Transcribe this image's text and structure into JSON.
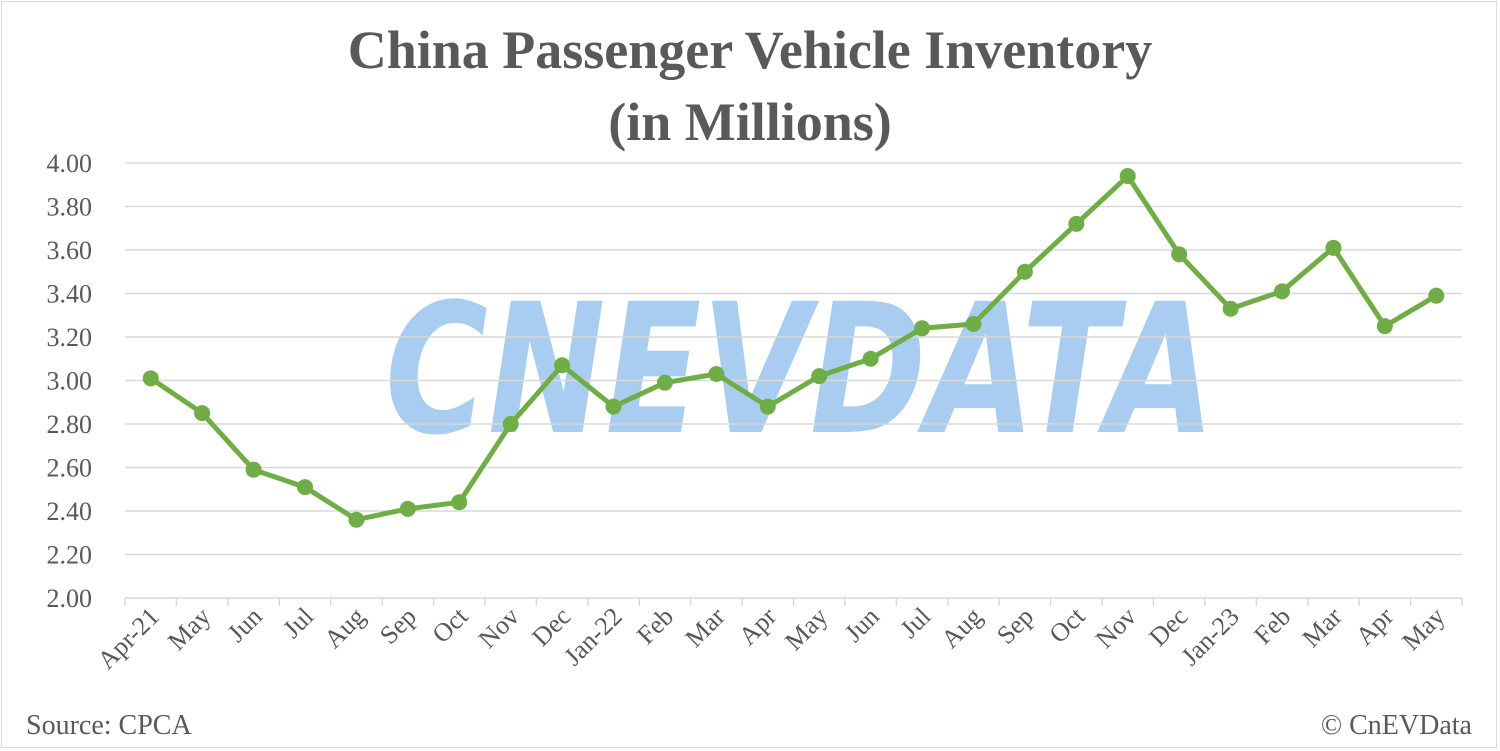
{
  "chart_data": {
    "type": "line",
    "title_line1": "China Passenger Vehicle Inventory",
    "title_line2": "(in Millions)",
    "categories": [
      "Apr-21",
      "May",
      "Jun",
      "Jul",
      "Aug",
      "Sep",
      "Oct",
      "Nov",
      "Dec",
      "Jan-22",
      "Feb",
      "Mar",
      "Apr",
      "May",
      "Jun",
      "Jul",
      "Aug",
      "Sep",
      "Oct",
      "Nov",
      "Dec",
      "Jan-23",
      "Feb",
      "Mar",
      "Apr",
      "May"
    ],
    "values": [
      3.01,
      2.85,
      2.59,
      2.51,
      2.36,
      2.41,
      2.44,
      2.8,
      3.07,
      2.88,
      2.99,
      3.03,
      2.88,
      3.02,
      3.1,
      3.24,
      3.26,
      3.5,
      3.72,
      3.94,
      3.58,
      3.33,
      3.41,
      3.61,
      3.25,
      3.39
    ],
    "ylim": [
      2.0,
      4.0
    ],
    "yticks": [
      "2.00",
      "2.20",
      "2.40",
      "2.60",
      "2.80",
      "3.00",
      "3.20",
      "3.40",
      "3.60",
      "3.80",
      "4.00"
    ],
    "grid": true,
    "series_color": "#70ad47",
    "watermark_text": "CNEVDATA",
    "watermark_color": "#a9cdf0"
  },
  "footer": {
    "source": "Source: CPCA",
    "copyright": "© CnEVData"
  }
}
